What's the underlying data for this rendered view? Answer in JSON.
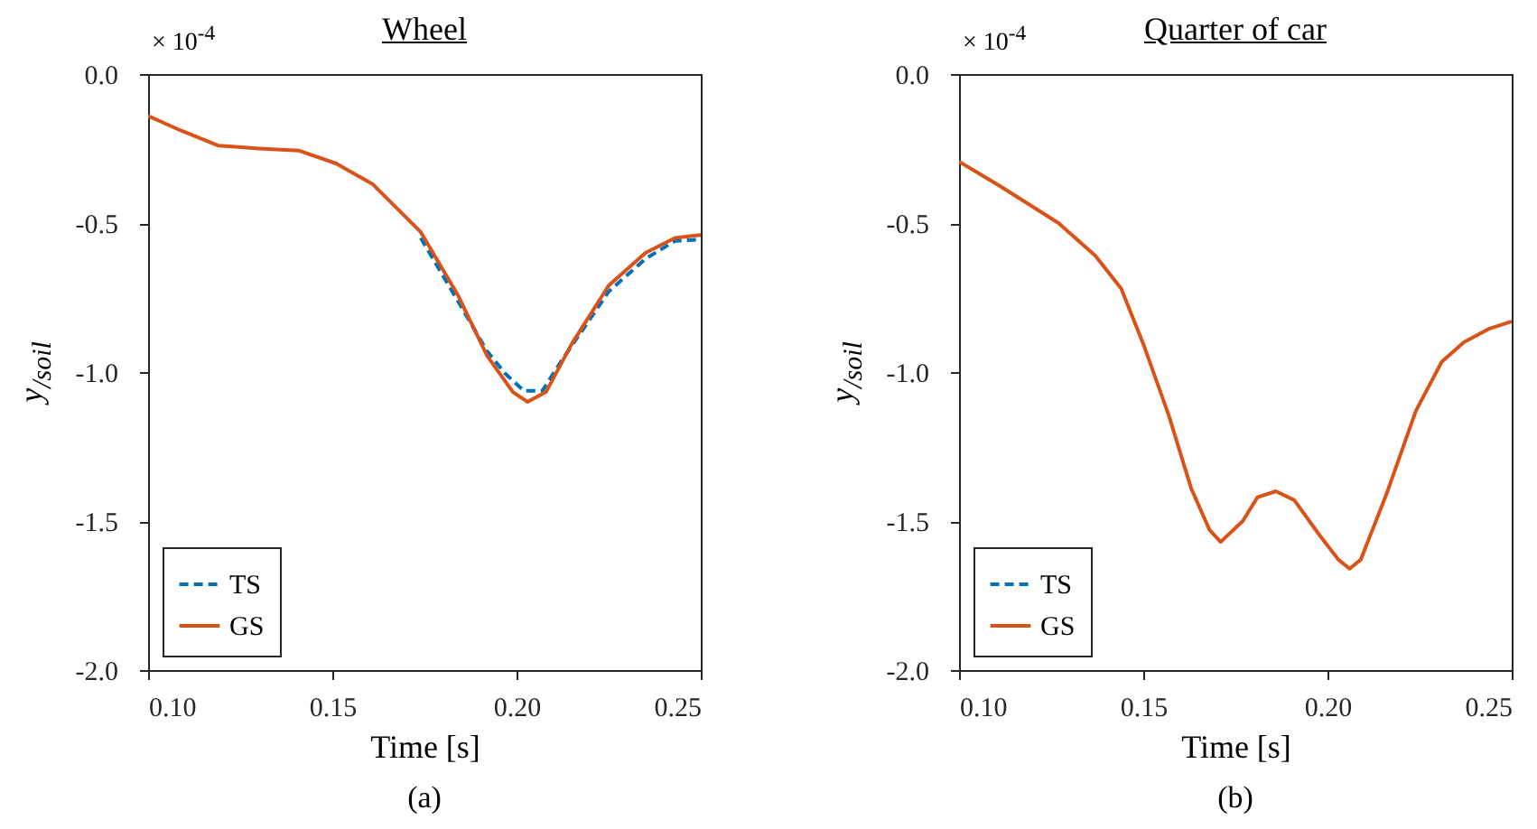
{
  "chart_data": [
    {
      "type": "line",
      "title": "Wheel",
      "xlabel": "Time [s]",
      "ylabel": "y$_{/soil}$",
      "legend": "bottom left",
      "grid": false,
      "xlim": [
        0.1,
        0.25
      ],
      "xticks": [
        {
          "value": 0.1,
          "label": "0.10"
        },
        {
          "value": 0.15,
          "label": "0.15"
        },
        {
          "value": 0.2,
          "label": "0.20"
        },
        {
          "value": 0.25,
          "label": "0.25"
        }
      ],
      "ylim": [
        -2,
        0
      ],
      "yticks": [
        {
          "value": -2,
          "label": "-2.0"
        },
        {
          "value": -1.5,
          "label": "-1.5"
        },
        {
          "value": -1,
          "label": "-1.0"
        },
        {
          "value": -0.5,
          "label": "-0.5"
        },
        {
          "value": 0,
          "label": "0.0"
        }
      ],
      "annotations": [
        "× 10$^{-4}$",
        "(a)"
      ],
      "series": [
        {
          "name": "TS",
          "color": "#0072bd",
          "line_style": "dashed",
          "x": [
            0.174,
            0.184,
            0.192,
            0.197,
            0.202,
            0.207,
            0.212,
            0.225,
            0.235,
            0.243,
            0.25
          ],
          "values": [
            -0.55,
            -0.76,
            -0.93,
            -1.006,
            -1.063,
            -1.063,
            -0.966,
            -0.73,
            -0.62,
            -0.56,
            -0.555
          ]
        },
        {
          "name": "GS",
          "color": "#d95319",
          "line_style": "solid",
          "x": [
            0.1,
            0.109,
            0.119,
            0.13,
            0.141,
            0.151,
            0.161,
            0.174,
            0.184,
            0.192,
            0.199,
            0.203,
            0.208,
            0.215,
            0.225,
            0.235,
            0.243,
            0.25
          ],
          "values": [
            -0.14,
            -0.19,
            -0.24,
            -0.25,
            -0.257,
            -0.3,
            -0.37,
            -0.53,
            -0.74,
            -0.945,
            -1.067,
            -1.1,
            -1.067,
            -0.905,
            -0.71,
            -0.6,
            -0.55,
            -0.54
          ]
        }
      ]
    },
    {
      "type": "line",
      "title": "Quarter of car",
      "xlabel": "Time [s]",
      "ylabel": "y$_{/soil}$",
      "legend": "bottom left",
      "grid": false,
      "xlim": [
        0.1,
        0.25
      ],
      "xticks": [
        {
          "value": 0.1,
          "label": "0.10"
        },
        {
          "value": 0.15,
          "label": "0.15"
        },
        {
          "value": 0.2,
          "label": "0.20"
        },
        {
          "value": 0.25,
          "label": "0.25"
        }
      ],
      "ylim": [
        -2,
        0
      ],
      "yticks": [
        {
          "value": -2,
          "label": "-2.0"
        },
        {
          "value": -1.5,
          "label": "-1.5"
        },
        {
          "value": -1,
          "label": "-1.0"
        },
        {
          "value": -0.5,
          "label": "-0.5"
        },
        {
          "value": 0,
          "label": "0.0"
        }
      ],
      "annotations": [
        "× 10$^{-4}$",
        "(b)"
      ],
      "series": [
        {
          "name": "TS",
          "color": "#0072bd",
          "line_style": "dashed"
        },
        {
          "name": "GS",
          "color": "#d95319",
          "line_style": "solid",
          "x": [
            0.1,
            0.111,
            0.127,
            0.137,
            0.144,
            0.15,
            0.157,
            0.163,
            0.168,
            0.171,
            0.177,
            0.181,
            0.186,
            0.191,
            0.198,
            0.203,
            0.206,
            0.209,
            0.216,
            0.224,
            0.231,
            0.237,
            0.244,
            0.25
          ],
          "values": [
            -0.294,
            -0.375,
            -0.5,
            -0.61,
            -0.72,
            -0.905,
            -1.148,
            -1.39,
            -1.53,
            -1.57,
            -1.5,
            -1.42,
            -1.4,
            -1.43,
            -1.55,
            -1.63,
            -1.66,
            -1.63,
            -1.41,
            -1.13,
            -0.966,
            -0.9,
            -0.854,
            -0.83
          ]
        }
      ]
    }
  ]
}
